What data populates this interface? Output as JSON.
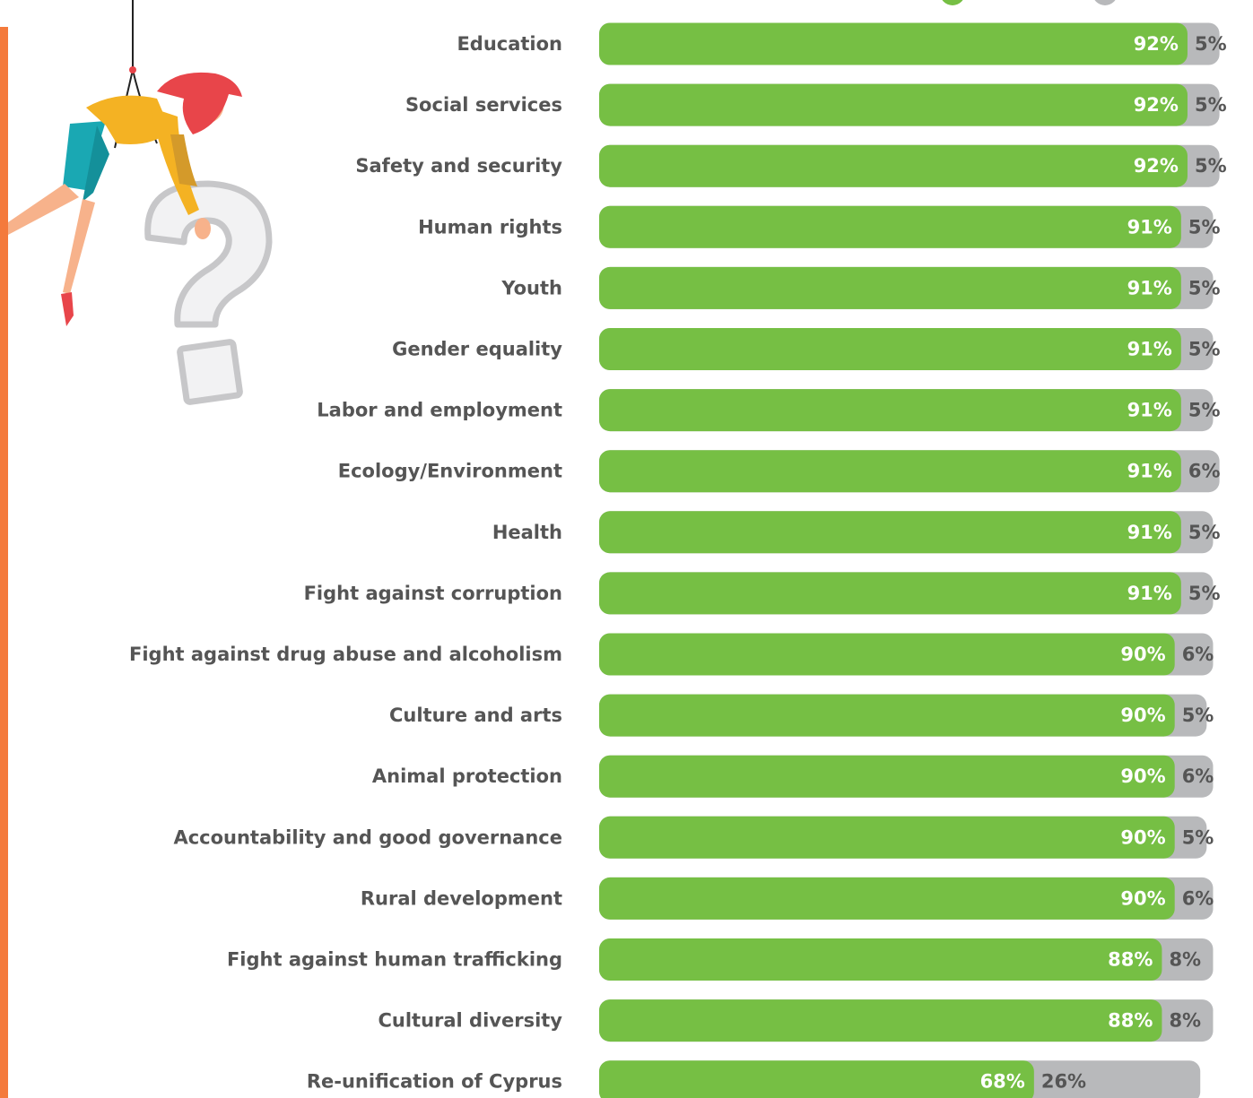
{
  "chart_data": {
    "type": "bar",
    "orientation": "horizontal",
    "stacked": true,
    "categories": [
      "Education",
      "Social services",
      "Safety and security",
      "Human rights",
      "Youth",
      "Gender equality",
      "Labor and employment",
      "Ecology/Environment",
      "Health",
      "Fight against corruption",
      "Fight against drug abuse and alcoholism",
      "Culture and arts",
      "Animal protection",
      "Accountability and good governance",
      "Rural development",
      "Fight against human trafficking",
      "Cultural diversity",
      "Re-unification of Cyprus"
    ],
    "series": [
      {
        "values": [
          92,
          92,
          92,
          91,
          91,
          91,
          91,
          91,
          91,
          91,
          90,
          90,
          90,
          90,
          90,
          88,
          88,
          68
        ],
        "labels": [
          "92%",
          "92%",
          "92%",
          "91%",
          "91%",
          "91%",
          "91%",
          "91%",
          "91%",
          "91%",
          "90%",
          "90%",
          "90%",
          "90%",
          "90%",
          "88%",
          "88%",
          "68%"
        ]
      },
      {
        "values": [
          5,
          5,
          5,
          5,
          5,
          5,
          5,
          6,
          5,
          5,
          6,
          5,
          6,
          5,
          6,
          8,
          8,
          26
        ],
        "labels": [
          "5%",
          "5%",
          "5%",
          "5%",
          "5%",
          "5%",
          "5%",
          "6%",
          "5%",
          "5%",
          "6%",
          "5%",
          "6%",
          "5%",
          "6%",
          "8%",
          "8%",
          "26%"
        ]
      }
    ],
    "xlim": [
      0,
      100
    ],
    "grid": false,
    "legend": "top-right"
  },
  "colors": {
    "series_1": "#76bf44",
    "series_2": "#b8b9bb",
    "accent_stripe": "#f47a3c",
    "label_text": "#555555"
  },
  "illustration": {
    "icon": "person-hanging-from-rope-with-question-mark-icon"
  }
}
